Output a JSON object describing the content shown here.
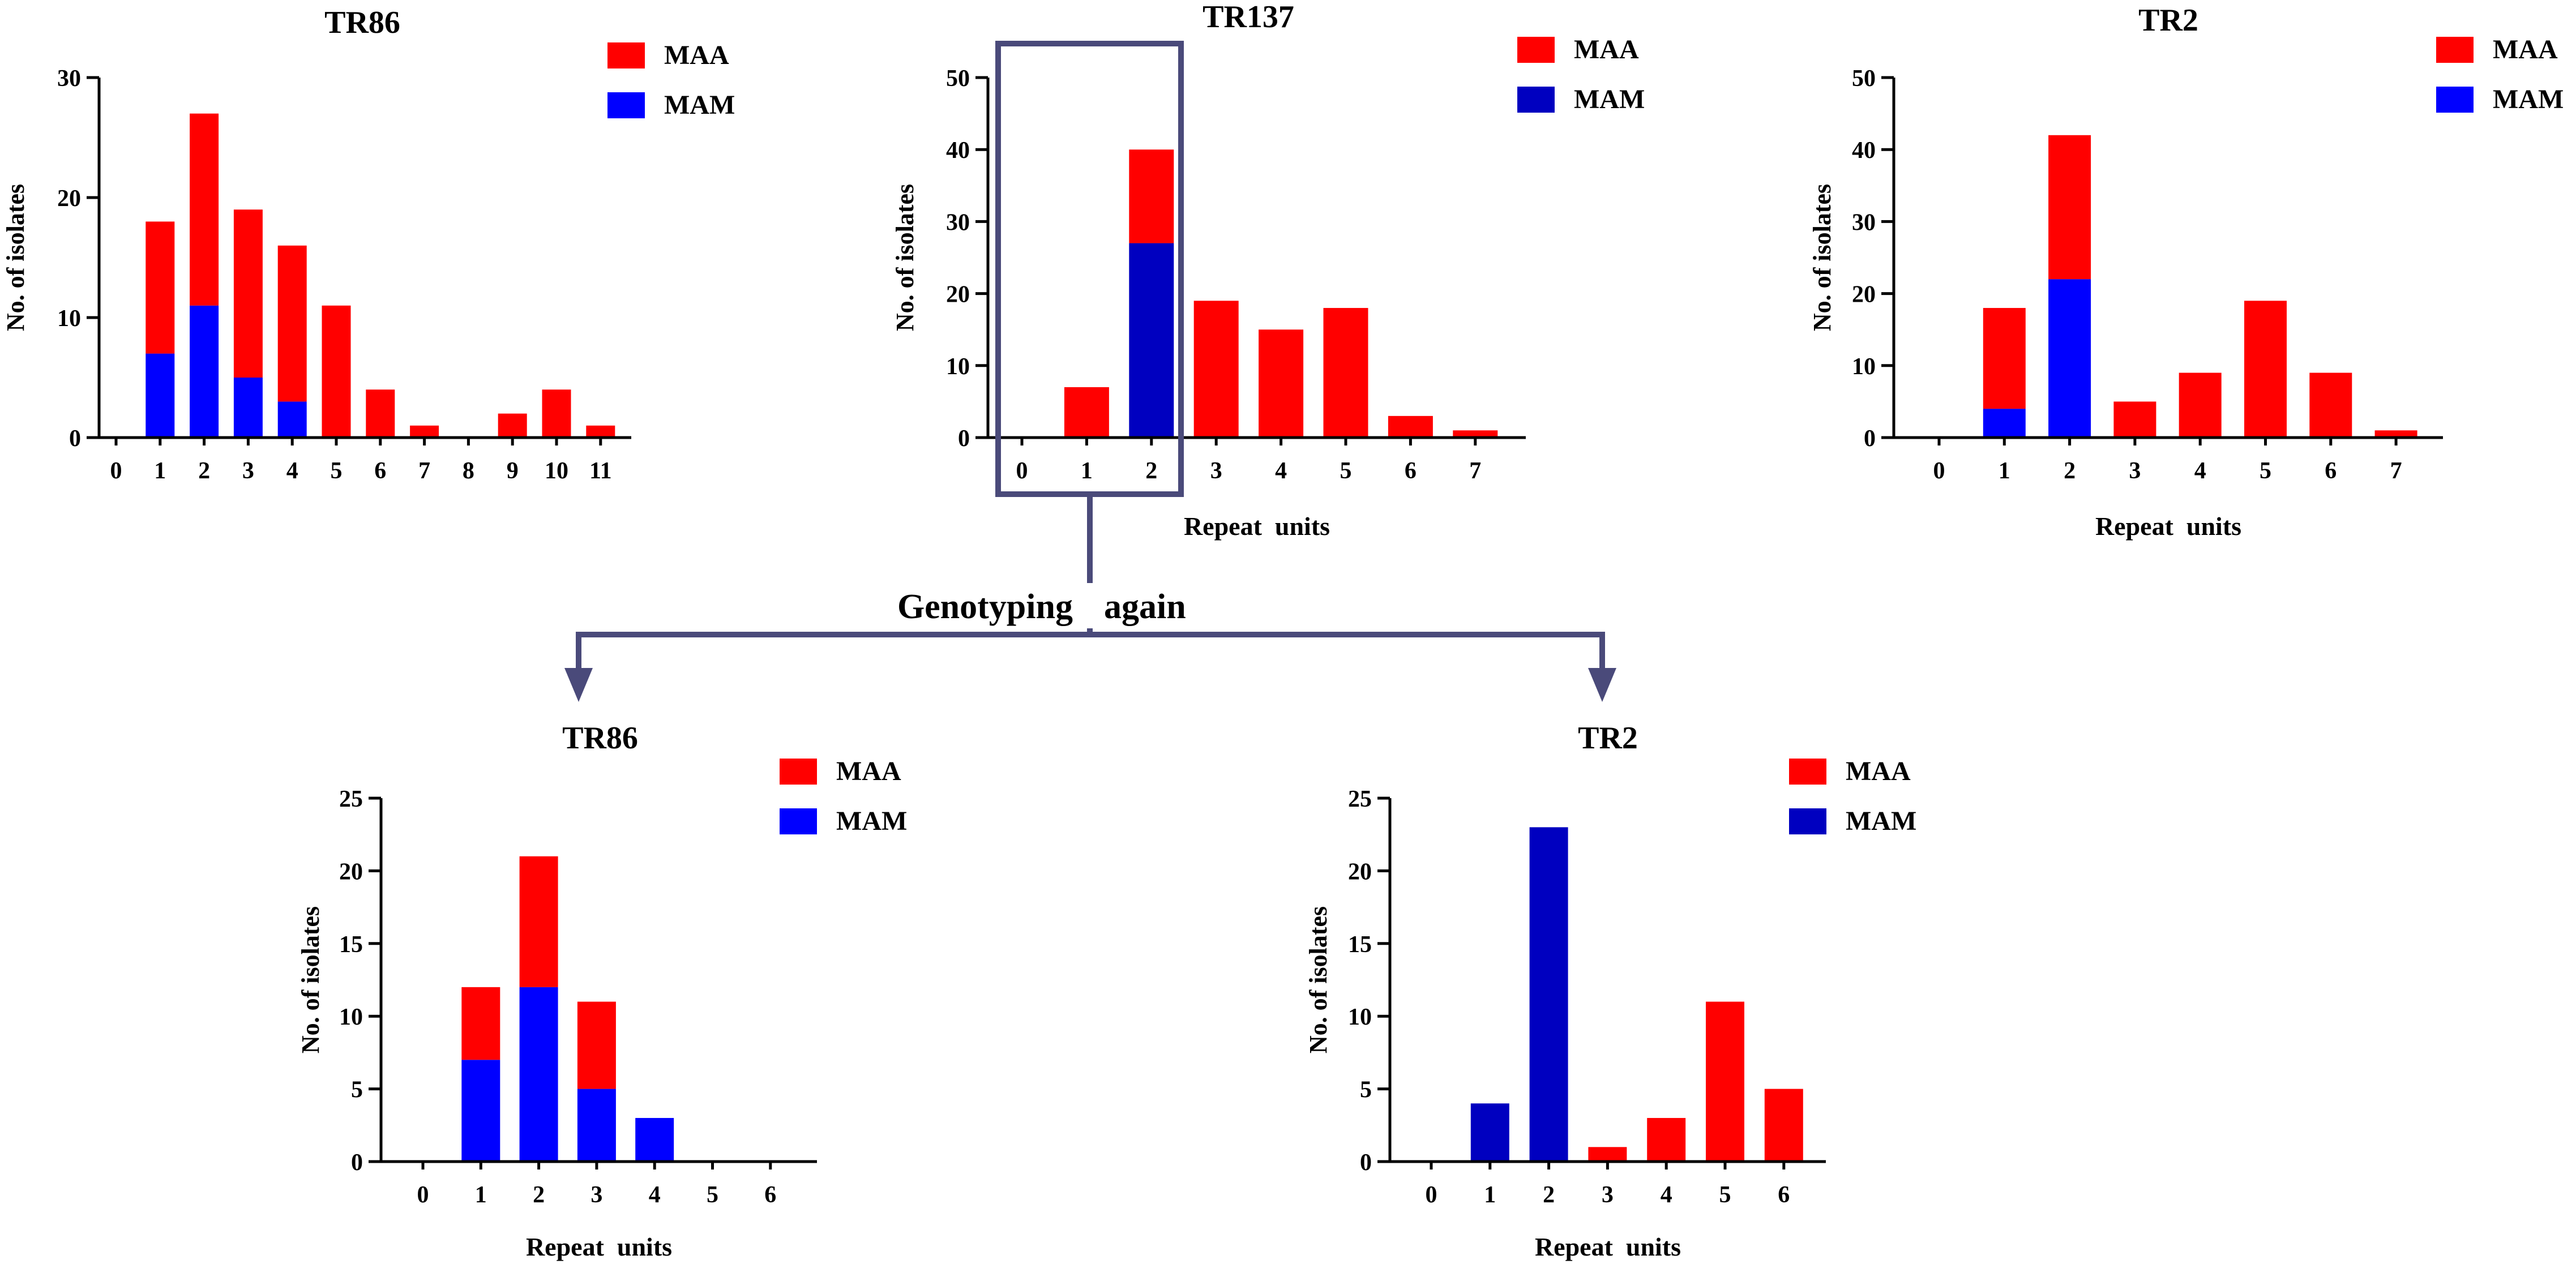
{
  "chart_data": [
    {
      "type": "bar",
      "stacked": true,
      "title": "TR86",
      "xlabel": "",
      "ylabel": "No. of isolates",
      "categories": [
        "0",
        "1",
        "2",
        "3",
        "4",
        "5",
        "6",
        "7",
        "8",
        "9",
        "10",
        "11"
      ],
      "ylim": [
        0,
        30
      ],
      "yticks": [
        0,
        10,
        20,
        30
      ],
      "series": [
        {
          "name": "MAM",
          "color": "#0000ff",
          "values": [
            0,
            7,
            11,
            5,
            3,
            0,
            0,
            0,
            0,
            0,
            0,
            0
          ]
        },
        {
          "name": "MAA",
          "color": "#ff0000",
          "values": [
            0,
            11,
            16,
            14,
            13,
            11,
            4,
            1,
            0,
            2,
            4,
            1
          ]
        }
      ],
      "legend": [
        {
          "label": "MAA",
          "color": "#ff0000"
        },
        {
          "label": "MAM",
          "color": "#0000ff"
        }
      ]
    },
    {
      "type": "bar",
      "stacked": true,
      "title": "TR137",
      "xlabel": "Repeat  units",
      "ylabel": "No. of isolates",
      "categories": [
        "0",
        "1",
        "2",
        "3",
        "4",
        "5",
        "6",
        "7"
      ],
      "ylim": [
        0,
        50
      ],
      "yticks": [
        0,
        10,
        20,
        30,
        40,
        50
      ],
      "series": [
        {
          "name": "MAM",
          "color": "#0000c0",
          "values": [
            0,
            0,
            27,
            0,
            0,
            0,
            0,
            0
          ]
        },
        {
          "name": "MAA",
          "color": "#ff0000",
          "values": [
            0,
            7,
            13,
            19,
            15,
            18,
            3,
            1
          ]
        }
      ],
      "legend": [
        {
          "label": "MAA",
          "color": "#ff0000"
        },
        {
          "label": "MAM",
          "color": "#0000c0"
        }
      ]
    },
    {
      "type": "bar",
      "stacked": true,
      "title": "TR2",
      "xlabel": "Repeat  units",
      "ylabel": "No. of isolates",
      "categories": [
        "0",
        "1",
        "2",
        "3",
        "4",
        "5",
        "6",
        "7"
      ],
      "ylim": [
        0,
        50
      ],
      "yticks": [
        0,
        10,
        20,
        30,
        40,
        50
      ],
      "series": [
        {
          "name": "MAM",
          "color": "#0000ff",
          "values": [
            0,
            4,
            22,
            0,
            0,
            0,
            0,
            0
          ]
        },
        {
          "name": "MAA",
          "color": "#ff0000",
          "values": [
            0,
            14,
            20,
            5,
            9,
            19,
            9,
            1
          ]
        }
      ],
      "legend": [
        {
          "label": "MAA",
          "color": "#ff0000"
        },
        {
          "label": "MAM",
          "color": "#0000ff"
        }
      ]
    },
    {
      "type": "bar",
      "stacked": true,
      "title": "TR86",
      "xlabel": "Repeat  units",
      "ylabel": "No. of isolates",
      "categories": [
        "0",
        "1",
        "2",
        "3",
        "4",
        "5",
        "6"
      ],
      "ylim": [
        0,
        25
      ],
      "yticks": [
        0,
        5,
        10,
        15,
        20,
        25
      ],
      "series": [
        {
          "name": "MAM",
          "color": "#0000ff",
          "values": [
            0,
            7,
            12,
            5,
            3,
            0,
            0
          ]
        },
        {
          "name": "MAA",
          "color": "#ff0000",
          "values": [
            0,
            5,
            9,
            6,
            0,
            0,
            0
          ]
        }
      ],
      "legend": [
        {
          "label": "MAA",
          "color": "#ff0000"
        },
        {
          "label": "MAM",
          "color": "#0000ff"
        }
      ]
    },
    {
      "type": "bar",
      "stacked": true,
      "title": "TR2",
      "xlabel": "Repeat  units",
      "ylabel": "No. of isolates",
      "categories": [
        "0",
        "1",
        "2",
        "3",
        "4",
        "5",
        "6"
      ],
      "ylim": [
        0,
        25
      ],
      "yticks": [
        0,
        5,
        10,
        15,
        20,
        25
      ],
      "series": [
        {
          "name": "MAM",
          "color": "#0000c0",
          "values": [
            0,
            4,
            23,
            0,
            0,
            0,
            0
          ]
        },
        {
          "name": "MAA",
          "color": "#ff0000",
          "values": [
            0,
            0,
            0,
            1,
            3,
            11,
            5
          ]
        }
      ],
      "legend": [
        {
          "label": "MAA",
          "color": "#ff0000"
        },
        {
          "label": "MAM",
          "color": "#0000c0"
        }
      ]
    }
  ],
  "annotation": {
    "label": "Genotyping",
    "label2": "again",
    "highlight_categories": [
      "0",
      "1",
      "2"
    ],
    "highlight_chart": "TR137",
    "color": "#4a4a7a"
  }
}
